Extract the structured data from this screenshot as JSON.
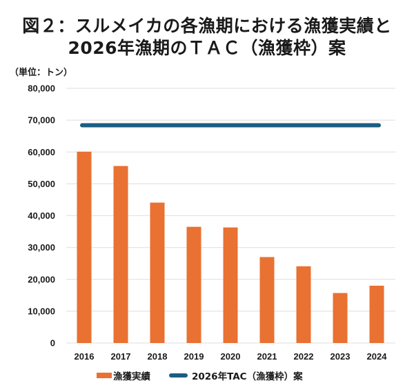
{
  "title": {
    "line1": "図２：スルメイカの各漁期における漁獲実績と",
    "line2": "2026年漁期のＴＡＣ（漁獲枠）案"
  },
  "unit_label": "（単位：トン）",
  "colors": {
    "catch": "#E97132",
    "tac": "#1B5E82",
    "grid": "#E4E4E4"
  },
  "chart_data": {
    "type": "bar",
    "title": "図２：スルメイカの各漁期における漁獲実績と2026年漁期のＴＡＣ（漁獲枠）案",
    "xlabel": "",
    "ylabel": "（単位：トン）",
    "ylim": [
      0,
      80000
    ],
    "grid": true,
    "legend_position": "bottom",
    "categories": [
      "2016",
      "2017",
      "2018",
      "2019",
      "2020",
      "2021",
      "2022",
      "2023",
      "2024"
    ],
    "y_ticks": [
      0,
      10000,
      20000,
      30000,
      40000,
      50000,
      60000,
      70000,
      80000
    ],
    "y_tick_labels": [
      "0",
      "10,000",
      "20,000",
      "30,000",
      "40,000",
      "50,000",
      "60,000",
      "70,000",
      "80,000"
    ],
    "series": [
      {
        "name": "漁獲実績",
        "type": "bar",
        "values": [
          60100,
          55600,
          44100,
          36500,
          36300,
          27000,
          24100,
          15700,
          18000
        ]
      },
      {
        "name": "2026年TAC（漁獲枠）案",
        "type": "line",
        "values": [
          68400,
          68400,
          68400,
          68400,
          68400,
          68400,
          68400,
          68400,
          68400
        ]
      }
    ]
  }
}
